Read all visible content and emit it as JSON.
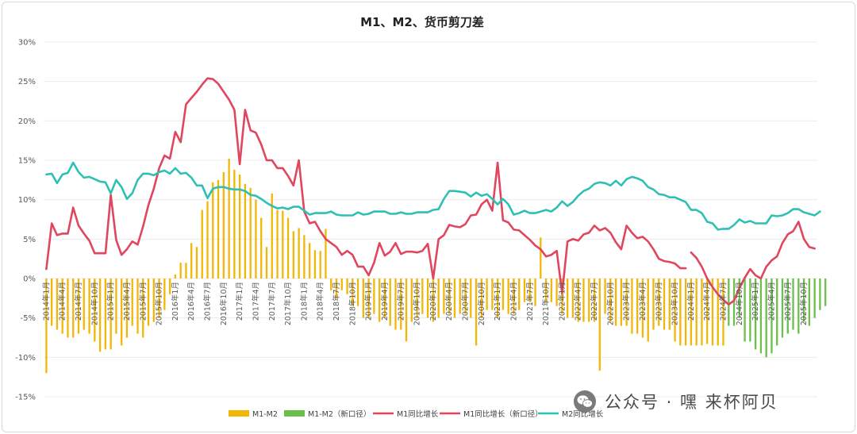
{
  "chart_data": {
    "type": "bar+line",
    "title": "M1、M2、货币剪刀差",
    "ylim": [
      -15,
      30
    ],
    "yticks": [
      -15,
      -10,
      -5,
      0,
      5,
      10,
      15,
      20,
      25,
      30
    ],
    "ytick_labels": [
      "-15%",
      "-10%",
      "-5%",
      "0%",
      "5%",
      "10%",
      "15%",
      "20%",
      "25%",
      "30%"
    ],
    "months_start": "2014-01",
    "months_count": 144,
    "x_tick_labels": [
      "2014年1月",
      "2014年4月",
      "2014年7月",
      "2014年10月",
      "2015年1月",
      "2015年4月",
      "2015年7月",
      "2015年10月",
      "2016年1月",
      "2016年4月",
      "2016年7月",
      "2016年10月",
      "2017年1月",
      "2017年4月",
      "2017年7月",
      "2017年10月",
      "2018年1月",
      "2018年4月",
      "2018年7月",
      "2018年10月",
      "2019年1月",
      "2019年4月",
      "2019年7月",
      "2019年10月",
      "2020年1月",
      "2020年4月",
      "2020年7月",
      "2020年10月",
      "2021年1月",
      "2021年4月",
      "2021年7月",
      "2021年10月",
      "2022年1月",
      "2022年4月",
      "2022年7月",
      "2022年10月",
      "2023年1月",
      "2023年4月",
      "2023年7月",
      "2023年10月",
      "2024年1月",
      "2024年4月",
      "2024年7月",
      "2024年10月",
      "2025年1月",
      "2025年4月",
      "2025年7月",
      "2025年10月"
    ],
    "series": [
      {
        "name": "M1-M2",
        "kind": "bar",
        "color": "#f2b705",
        "start_index": 0,
        "values": [
          -12,
          -6,
          -6.5,
          -7,
          -7.5,
          -7.5,
          -7,
          -6.5,
          -7,
          -8,
          -9.3,
          -9,
          -9,
          -7,
          -8.5,
          -7.5,
          -6,
          -7,
          -7.5,
          -6,
          -5.5,
          -5,
          -4,
          -2,
          0.5,
          2,
          2,
          4.5,
          4,
          8.7,
          9.8,
          12.2,
          12.5,
          13.5,
          15.2,
          13.8,
          13.2,
          12,
          11.5,
          10,
          7.7,
          4,
          10.8,
          8.7,
          8.6,
          7.7,
          6,
          6.4,
          5.5,
          4.5,
          3.6,
          3.5,
          6.3,
          -1.5,
          -2.5,
          -1.5,
          -2,
          -3.5,
          -3.5,
          -5,
          -5,
          -4.5,
          -5.5,
          -5,
          -6,
          -6.5,
          -6.5,
          -8,
          -5.5,
          -5,
          -4.5,
          -5,
          -5.5,
          -5,
          -4.5,
          -4.5,
          -5,
          -4.5,
          -4.5,
          -5,
          -8.5,
          -5,
          -4,
          -4,
          -5,
          -4,
          -4.5,
          -4.5,
          -4,
          -3,
          -3,
          -3.5,
          5.2,
          -3,
          -3,
          -3.5,
          -4.5,
          -5,
          -5,
          -5.5,
          -5.5,
          -5.5,
          -5.5,
          -11.7,
          -4.5,
          -5.5,
          -6,
          -6,
          -6,
          -7,
          -7,
          -7.5,
          -8,
          -6.5,
          -6,
          -6.5,
          -6.5,
          -8,
          -8.5,
          -8.5,
          -8.5,
          -8.5,
          -8.5,
          -8.3,
          -8.5,
          -8.5,
          -8.5
        ]
      },
      {
        "name": "M1-M2（新口径）",
        "kind": "bar",
        "color": "#6cc04a",
        "start_index": 127,
        "values": [
          -6,
          -6,
          -5,
          -8,
          -8,
          -9,
          -9.5,
          -10,
          -9.5,
          -8.5,
          -7.5,
          -7,
          -6.5,
          -7,
          -5.5,
          -6,
          -5,
          -4,
          -3.5
        ]
      },
      {
        "name": "M1同比增长",
        "kind": "line",
        "color": "#e0465e",
        "start_index": 0,
        "values": [
          1.2,
          7,
          5.5,
          5.7,
          5.7,
          9,
          6.7,
          5.7,
          4.8,
          3.2,
          3.2,
          3.2,
          10.6,
          4.9,
          3,
          3.7,
          4.7,
          4.3,
          6.6,
          9.3,
          11.4,
          14,
          15.6,
          15.2,
          18.6,
          17.3,
          22.1,
          22.9,
          23.7,
          24.6,
          25.4,
          25.3,
          24.7,
          23.7,
          22.7,
          21.4,
          14.5,
          21.4,
          18.8,
          18.5,
          17,
          15,
          15,
          14,
          14,
          13,
          11.8,
          15,
          8.5,
          7,
          7.2,
          6,
          5,
          4.5,
          4,
          3,
          3.5,
          3,
          1.5,
          1.5,
          0.4,
          2,
          4.5,
          2.9,
          3.4,
          4.5,
          3.1,
          3.4,
          3.4,
          3.3,
          3.5,
          4.4,
          0,
          5,
          5.5,
          6.8,
          6.6,
          6.5,
          6.9,
          8,
          8.1,
          9.4,
          10,
          8.6,
          14.7,
          7.4,
          7.1,
          6.2,
          6.1,
          5.5,
          4.9,
          4.2,
          3.7,
          2.8,
          3.0,
          3.5,
          -1.9,
          4.7,
          5,
          4.8,
          5.6,
          5.8,
          6.7,
          6.1,
          6.4,
          5.8,
          4.6,
          3.7,
          6.7,
          5.8,
          5.1,
          5.3,
          4.7,
          3.7,
          2.5,
          2.2,
          2.1,
          1.9,
          1.3,
          1.3
        ]
      },
      {
        "name": "M1同比增长（新口径）",
        "kind": "line",
        "color": "#e0465e",
        "start_index": 120,
        "values": [
          3.3,
          2.6,
          1.5,
          0,
          -1.1,
          -2,
          -2.7,
          -3.3,
          -2.8,
          -1.2,
          0.1,
          1.2,
          0.4,
          0,
          1.5,
          2.3,
          2.8,
          4.5,
          5.6,
          6,
          7.2,
          5,
          4,
          3.8
        ]
      },
      {
        "name": "M2同比增长",
        "kind": "line",
        "color": "#2fc0b4",
        "start_index": 0,
        "values": [
          13.2,
          13.3,
          12.1,
          13.2,
          13.4,
          14.7,
          13.5,
          12.8,
          12.9,
          12.6,
          12.3,
          12.2,
          10.8,
          12.5,
          11.6,
          10.1,
          10.8,
          12.5,
          13.3,
          13.3,
          13.1,
          13.5,
          13.7,
          13.3,
          14,
          13.3,
          13.4,
          12.8,
          11.8,
          11.8,
          10.2,
          11.4,
          11.6,
          11.6,
          11.4,
          11.3,
          11.3,
          11.1,
          10.6,
          10.5,
          10.1,
          9.6,
          9.2,
          8.9,
          9,
          8.8,
          9.1,
          9.1,
          8.6,
          8.1,
          8.3,
          8.3,
          8.3,
          8.5,
          8.1,
          8.0,
          8.0,
          8.0,
          8.4,
          8.1,
          8.2,
          8.5,
          8.5,
          8.5,
          8.2,
          8.2,
          8.4,
          8.2,
          8.2,
          8.4,
          8.4,
          8.4,
          8.7,
          8.8,
          10.1,
          11.1,
          11.1,
          11,
          10.9,
          10.4,
          10.9,
          10.5,
          10.7,
          10.1,
          9.4,
          10.1,
          9.4,
          8.1,
          8.3,
          8.6,
          8.3,
          8.3,
          8.5,
          8.7,
          8.5,
          9.0,
          9.8,
          9.2,
          9.7,
          10.5,
          11.1,
          11.4,
          12.0,
          12.2,
          12.1,
          11.8,
          12.4,
          11.8,
          12.6,
          12.9,
          12.7,
          12.4,
          11.6,
          11.3,
          10.7,
          10.6,
          10.3,
          10.3,
          10.0,
          9.7,
          8.7,
          8.7,
          8.3,
          7.2,
          7.0,
          6.2,
          6.3,
          6.3,
          6.8,
          7.5,
          7.1,
          7.3,
          7.0,
          7.0,
          7.0,
          8.0,
          7.9,
          8.0,
          8.3,
          8.8,
          8.8,
          8.4,
          8.2,
          8.0,
          8.5
        ]
      }
    ],
    "legend": {
      "position": "bottom-center",
      "items": [
        {
          "label": "M1-M2",
          "color": "#f2b705",
          "kind": "bar"
        },
        {
          "label": "M1-M2（新口径）",
          "color": "#6cc04a",
          "kind": "bar"
        },
        {
          "label": "M1同比增长",
          "color": "#e0465e",
          "kind": "line"
        },
        {
          "label": "M1同比增长（新口径）",
          "color": "#e0465e",
          "kind": "line"
        },
        {
          "label": "M2同比增长",
          "color": "#2fc0b4",
          "kind": "line"
        }
      ]
    }
  },
  "watermark": {
    "text": "公众号 · 嘿 来杯阿贝",
    "icon": "wechat-icon"
  }
}
